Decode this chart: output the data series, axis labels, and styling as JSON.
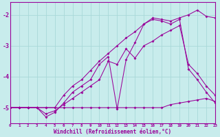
{
  "background_color": "#c8ecec",
  "grid_color": "#a8d8d8",
  "line_color": "#990099",
  "xlabel": "Windchill (Refroidissement éolien,°C)",
  "xlim": [
    0,
    23
  ],
  "ylim": [
    -5.5,
    -1.6
  ],
  "yticks": [
    -5,
    -4,
    -3,
    -2
  ],
  "xticks": [
    0,
    1,
    2,
    3,
    4,
    5,
    6,
    7,
    8,
    9,
    10,
    11,
    12,
    13,
    14,
    15,
    16,
    17,
    18,
    19,
    20,
    21,
    22,
    23
  ],
  "series": [
    {
      "x": [
        0,
        1,
        2,
        3,
        4,
        5,
        6,
        7,
        8,
        9,
        10,
        11,
        12,
        13,
        14,
        15,
        16,
        17,
        18,
        19,
        20,
        21,
        22,
        23
      ],
      "y": [
        -5.0,
        -5.0,
        -5.0,
        -5.0,
        -5.0,
        -5.0,
        -4.6,
        -4.3,
        -4.1,
        -3.8,
        -3.5,
        -3.25,
        -3.0,
        -2.75,
        -2.55,
        -2.3,
        -2.1,
        -2.15,
        -2.2,
        -2.1,
        -2.0,
        -1.85,
        -2.05,
        -2.1
      ]
    },
    {
      "x": [
        0,
        1,
        2,
        3,
        4,
        5,
        6,
        7,
        8,
        9,
        10,
        11,
        12,
        13,
        14,
        15,
        16,
        17,
        18,
        19,
        20,
        21,
        22,
        23
      ],
      "y": [
        -5.0,
        -5.0,
        -5.0,
        -5.0,
        -5.2,
        -5.1,
        -4.9,
        -4.7,
        -4.5,
        -4.3,
        -4.1,
        -3.5,
        -3.6,
        -3.1,
        -3.4,
        -3.0,
        -2.85,
        -2.65,
        -2.5,
        -2.35,
        -3.6,
        -3.9,
        -4.3,
        -4.6
      ]
    },
    {
      "x": [
        0,
        1,
        2,
        3,
        4,
        5,
        6,
        7,
        8,
        9,
        10,
        11,
        12,
        13,
        14,
        15,
        16,
        17,
        18,
        19,
        20,
        21,
        22,
        23
      ],
      "y": [
        -5.0,
        -5.0,
        -5.0,
        -5.0,
        -5.0,
        -5.0,
        -5.0,
        -5.0,
        -5.0,
        -5.0,
        -5.0,
        -5.0,
        -5.0,
        -5.0,
        -5.0,
        -5.0,
        -5.0,
        -5.0,
        -4.9,
        -4.85,
        -4.8,
        -4.75,
        -4.7,
        -4.8
      ]
    },
    {
      "x": [
        0,
        1,
        2,
        3,
        4,
        5,
        6,
        7,
        8,
        9,
        10,
        11,
        12,
        13,
        14,
        15,
        16,
        17,
        18,
        19,
        20,
        21,
        22,
        23
      ],
      "y": [
        -5.0,
        -5.0,
        -5.0,
        -5.0,
        -5.3,
        -5.15,
        -4.85,
        -4.5,
        -4.3,
        -4.1,
        -3.6,
        -3.35,
        -5.05,
        -3.45,
        -2.9,
        -2.3,
        -2.15,
        -2.2,
        -2.3,
        -2.15,
        -3.75,
        -4.1,
        -4.5,
        -4.85
      ]
    }
  ]
}
